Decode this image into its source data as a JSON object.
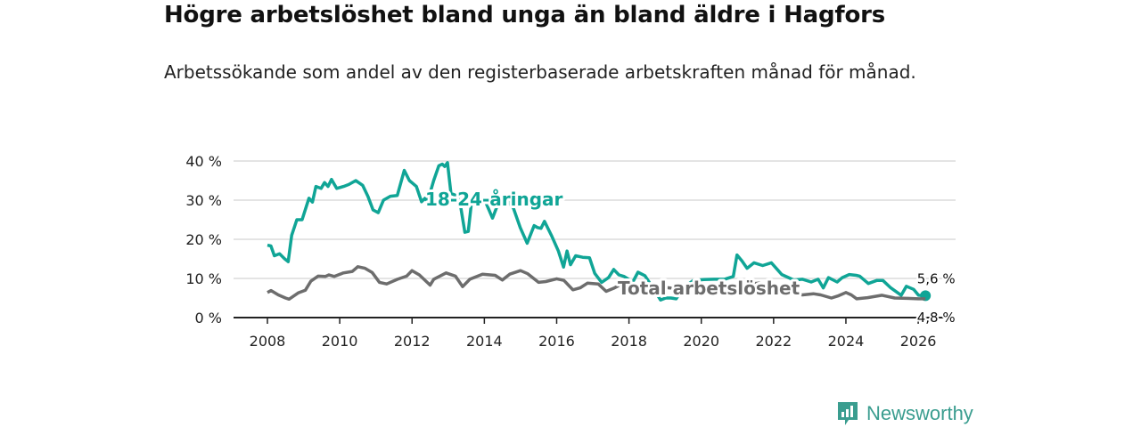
{
  "chart_data": {
    "type": "line",
    "title": "Högre arbetslöshet bland unga än bland äldre i Hagfors",
    "subtitle": "Arbetssökande som andel av den registerbaserade arbetskraften månad för månad.",
    "xlabel": "",
    "ylabel": "",
    "xlim": [
      2007.1,
      2027.0
    ],
    "ylim": [
      0,
      40
    ],
    "x_ticks": [
      2008,
      2010,
      2012,
      2014,
      2016,
      2018,
      2020,
      2022,
      2024,
      2026
    ],
    "x_tick_labels": [
      "2008",
      "2010",
      "2012",
      "2014",
      "2016",
      "2018",
      "2020",
      "2022",
      "2024",
      "2026"
    ],
    "y_ticks": [
      0,
      10,
      20,
      30,
      40
    ],
    "y_tick_labels": [
      "0 %",
      "10 %",
      "20 %",
      "30 %",
      "40 %"
    ],
    "grid": true,
    "series": [
      {
        "name": "18-24-åringar",
        "color": "#10a596",
        "end_label": "5,6 %",
        "points": [
          [
            2008.0,
            18.5
          ],
          [
            2008.1,
            18.3
          ],
          [
            2008.2,
            15.8
          ],
          [
            2008.35,
            16.3
          ],
          [
            2008.5,
            15
          ],
          [
            2008.6,
            14.3
          ],
          [
            2008.7,
            21
          ],
          [
            2008.85,
            25
          ],
          [
            2009.0,
            25
          ],
          [
            2009.2,
            30.5
          ],
          [
            2009.3,
            29.5
          ],
          [
            2009.4,
            33.5
          ],
          [
            2009.55,
            33
          ],
          [
            2009.65,
            34.5
          ],
          [
            2009.75,
            33.5
          ],
          [
            2009.85,
            35.3
          ],
          [
            2010.0,
            33
          ],
          [
            2010.2,
            33.5
          ],
          [
            2010.35,
            34
          ],
          [
            2010.55,
            35
          ],
          [
            2010.75,
            33.8
          ],
          [
            2010.9,
            31
          ],
          [
            2011.05,
            27.5
          ],
          [
            2011.2,
            26.8
          ],
          [
            2011.35,
            30
          ],
          [
            2011.55,
            31
          ],
          [
            2011.75,
            31.2
          ],
          [
            2011.95,
            37.6
          ],
          [
            2012.1,
            35
          ],
          [
            2012.3,
            33.5
          ],
          [
            2012.45,
            29.6
          ],
          [
            2012.55,
            30.5
          ],
          [
            2012.62,
            29.5
          ],
          [
            2012.8,
            35
          ],
          [
            2012.95,
            38.8
          ],
          [
            2013.05,
            39.2
          ],
          [
            2013.12,
            38.6
          ],
          [
            2013.2,
            39.6
          ],
          [
            2013.3,
            31.7
          ],
          [
            2013.45,
            31.2
          ],
          [
            2013.55,
            30
          ],
          [
            2013.7,
            21.8
          ],
          [
            2013.8,
            22
          ],
          [
            2013.9,
            30
          ],
          [
            2014.1,
            30
          ],
          [
            2014.3,
            29.5
          ],
          [
            2014.5,
            25.4
          ],
          [
            2014.7,
            30
          ],
          [
            2014.9,
            30
          ],
          [
            2015.1,
            28
          ],
          [
            2015.3,
            23
          ],
          [
            2015.5,
            19
          ],
          [
            2015.7,
            23.5
          ],
          [
            2015.8,
            23
          ],
          [
            2015.9,
            22.8
          ],
          [
            2016.0,
            24.6
          ],
          [
            2016.2,
            21
          ],
          [
            2016.4,
            17
          ],
          [
            2016.55,
            12.9
          ],
          [
            2016.65,
            17
          ],
          [
            2016.75,
            13.5
          ],
          [
            2016.9,
            15.8
          ],
          [
            2017.1,
            15.4
          ],
          [
            2017.3,
            15.3
          ],
          [
            2017.45,
            11.3
          ],
          [
            2017.65,
            9
          ],
          [
            2017.85,
            10.2
          ],
          [
            2018.0,
            12.3
          ],
          [
            2018.15,
            10.9
          ],
          [
            2018.3,
            10.5
          ],
          [
            2018.55,
            9.1
          ],
          [
            2018.7,
            11.6
          ],
          [
            2018.9,
            10.7
          ],
          [
            2019.1,
            8
          ],
          [
            2019.35,
            4.5
          ],
          [
            2019.5,
            5
          ],
          [
            2019.65,
            5
          ],
          [
            2019.8,
            4.8
          ],
          [
            2020.0,
            7.5
          ],
          [
            2020.3,
            9.5
          ],
          [
            2020.6,
            9.7
          ],
          [
            2020.9,
            9.8
          ],
          [
            2021.2,
            9.8
          ],
          [
            2021.45,
            10.5
          ],
          [
            2021.56,
            16
          ],
          [
            2021.7,
            14.5
          ],
          [
            2021.85,
            12.6
          ],
          [
            2022.05,
            14
          ],
          [
            2022.3,
            13.3
          ],
          [
            2022.55,
            14
          ],
          [
            2022.75,
            12
          ],
          [
            2022.85,
            11
          ],
          [
            2023.05,
            10.2
          ],
          [
            2023.2,
            9.6
          ],
          [
            2023.45,
            9.8
          ],
          [
            2023.7,
            9.1
          ],
          [
            2023.9,
            9.8
          ],
          [
            2024.05,
            7.6
          ],
          [
            2024.2,
            10.2
          ],
          [
            2024.45,
            9.1
          ],
          [
            2024.6,
            10.2
          ],
          [
            2024.8,
            11
          ],
          [
            2025.0,
            10.8
          ],
          [
            2025.1,
            10.6
          ],
          [
            2025.35,
            8.7
          ],
          [
            2025.6,
            9.5
          ],
          [
            2025.77,
            9.5
          ],
          [
            2026.0,
            7.6
          ],
          [
            2026.3,
            5.7
          ],
          [
            2026.45,
            8
          ],
          [
            2026.66,
            7.2
          ],
          [
            2026.8,
            5.7
          ],
          [
            2027.0,
            5.6
          ]
        ]
      },
      {
        "name": "Total arbetslöshet",
        "color": "#6d6d6d",
        "end_label": "4,8 %",
        "points": [
          [
            2008.0,
            6.4
          ],
          [
            2008.1,
            6.9
          ],
          [
            2008.3,
            5.8
          ],
          [
            2008.5,
            5
          ],
          [
            2008.6,
            4.7
          ],
          [
            2008.85,
            6.3
          ],
          [
            2009.05,
            7
          ],
          [
            2009.2,
            9.3
          ],
          [
            2009.4,
            10.6
          ],
          [
            2009.6,
            10.5
          ],
          [
            2009.7,
            10.9
          ],
          [
            2009.85,
            10.5
          ],
          [
            2010.1,
            11.4
          ],
          [
            2010.35,
            11.8
          ],
          [
            2010.5,
            13
          ],
          [
            2010.7,
            12.6
          ],
          [
            2010.9,
            11.5
          ],
          [
            2011.1,
            9
          ],
          [
            2011.3,
            8.6
          ],
          [
            2011.6,
            9.8
          ],
          [
            2011.85,
            10.6
          ],
          [
            2012.0,
            12
          ],
          [
            2012.2,
            10.9
          ],
          [
            2012.5,
            8.3
          ],
          [
            2012.6,
            9.8
          ],
          [
            2012.94,
            11.4
          ],
          [
            2013.2,
            10.6
          ],
          [
            2013.4,
            7.9
          ],
          [
            2013.6,
            9.8
          ],
          [
            2013.95,
            11.1
          ],
          [
            2014.3,
            10.8
          ],
          [
            2014.5,
            9.6
          ],
          [
            2014.7,
            11.1
          ],
          [
            2015.0,
            12
          ],
          [
            2015.2,
            11.2
          ],
          [
            2015.5,
            9
          ],
          [
            2015.7,
            9.2
          ],
          [
            2016.0,
            9.9
          ],
          [
            2016.2,
            9.5
          ],
          [
            2016.45,
            7.1
          ],
          [
            2016.65,
            7.6
          ],
          [
            2016.85,
            8.8
          ],
          [
            2017.15,
            8.6
          ],
          [
            2017.37,
            6.7
          ],
          [
            2017.6,
            7.6
          ],
          [
            2017.8,
            8.6
          ],
          [
            2018.1,
            8.6
          ],
          [
            2018.4,
            6.7
          ],
          [
            2018.6,
            7.9
          ],
          [
            2018.9,
            7.8
          ],
          [
            2019.3,
            7.4
          ],
          [
            2019.7,
            7.6
          ],
          [
            2020.0,
            7.5
          ],
          [
            2020.5,
            7.8
          ],
          [
            2020.9,
            8.6
          ],
          [
            2021.2,
            8.5
          ],
          [
            2021.6,
            8.8
          ],
          [
            2022.0,
            8
          ],
          [
            2022.3,
            7
          ],
          [
            2022.55,
            6.2
          ],
          [
            2022.8,
            5.8
          ],
          [
            2023.1,
            6.1
          ],
          [
            2023.3,
            5.8
          ],
          [
            2023.6,
            5.0
          ],
          [
            2023.8,
            5.6
          ],
          [
            2024.0,
            6.4
          ],
          [
            2024.15,
            5.8
          ],
          [
            2024.3,
            4.8
          ],
          [
            2024.6,
            5.1
          ],
          [
            2025.0,
            5.7
          ],
          [
            2025.35,
            5.0
          ],
          [
            2025.7,
            4.9
          ],
          [
            2026.0,
            4.8
          ],
          [
            2026.2,
            4.8
          ]
        ]
      }
    ],
    "annotations": [
      "18-24-åringar",
      "Total arbetslöshet"
    ]
  },
  "branding": {
    "logo_text": "Newsworthy",
    "color": "#3a9d8f"
  }
}
